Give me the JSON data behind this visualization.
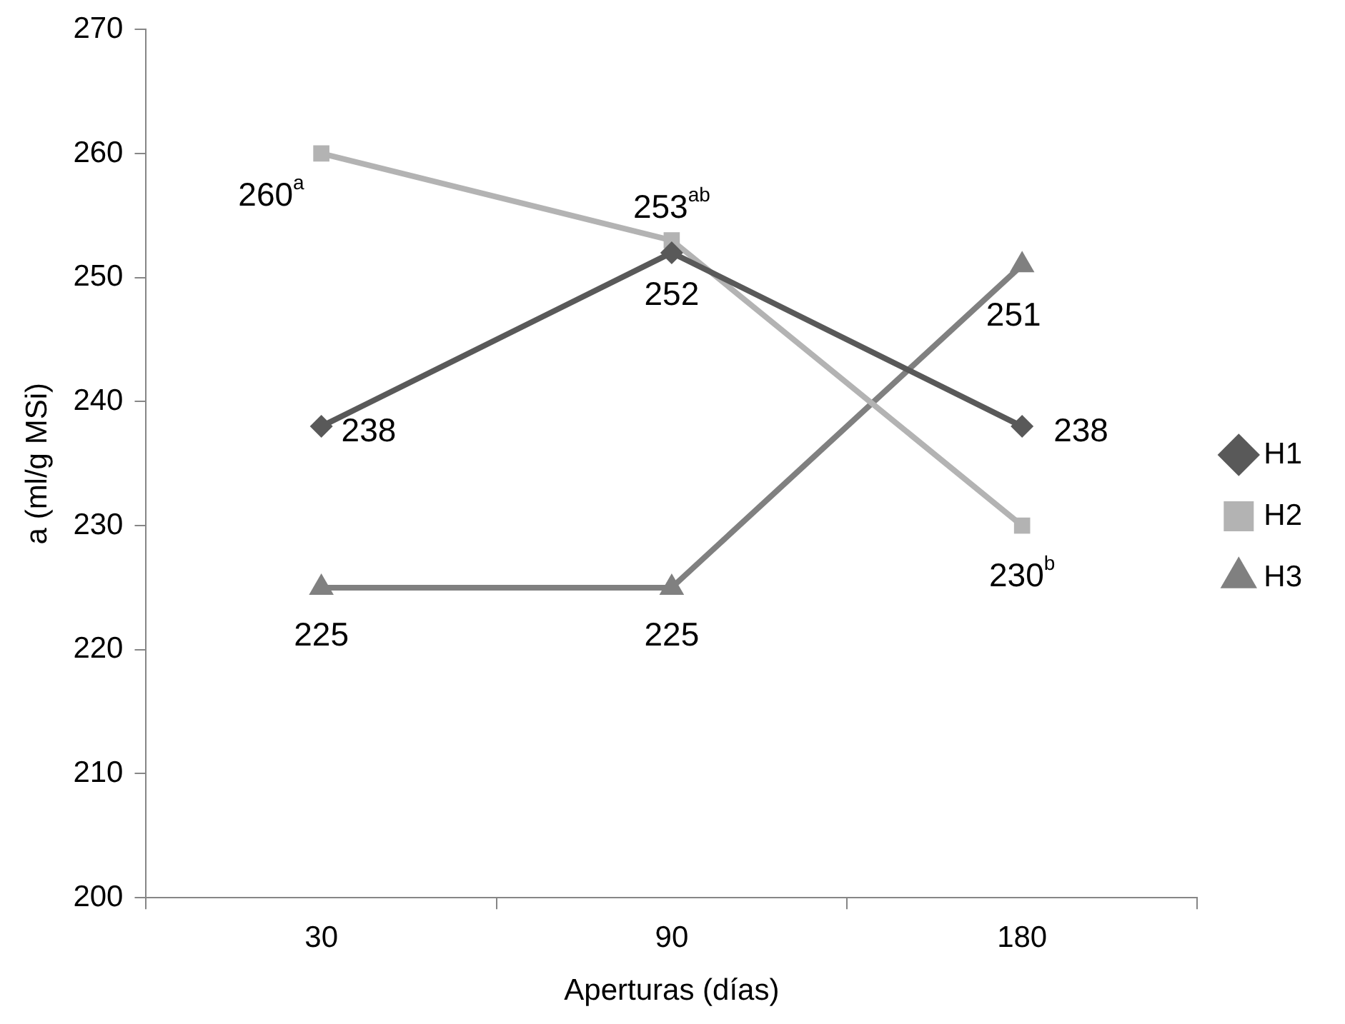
{
  "chart_data": {
    "type": "line",
    "xlabel": "Aperturas (días)",
    "ylabel": "a (ml/g MSi)",
    "categories": [
      "30",
      "90",
      "180"
    ],
    "ylim": [
      200,
      270
    ],
    "yticks": [
      200,
      210,
      220,
      230,
      240,
      250,
      260,
      270
    ],
    "grid": false,
    "legend": "right",
    "line_style": "solid",
    "series": [
      {
        "name": "H1",
        "color": "#595959",
        "marker": "diamond",
        "values": [
          238,
          252,
          238
        ],
        "value_labels": [
          "238",
          "252",
          "238"
        ]
      },
      {
        "name": "H2",
        "color": "#b3b3b3",
        "marker": "square",
        "values": [
          260,
          253,
          230
        ],
        "value_labels": [
          "260$^{a}$",
          "253$^{ab}$",
          "230$^{b}$"
        ]
      },
      {
        "name": "H3",
        "color": "#808080",
        "marker": "triangle",
        "values": [
          225,
          225,
          251
        ],
        "value_labels": [
          "225",
          "225",
          "251"
        ]
      }
    ]
  }
}
